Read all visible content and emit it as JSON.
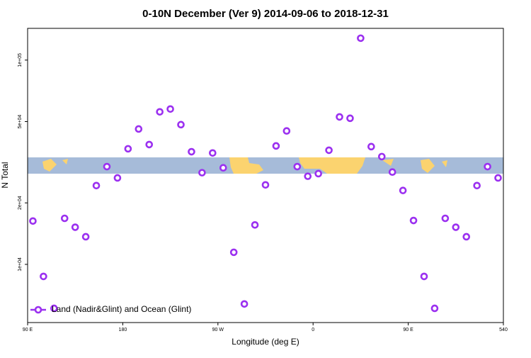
{
  "chart_data": {
    "type": "scatter",
    "title": "0-10N December (Ver 9)   2014-09-06 to 2018-12-31",
    "x_label": "Longitude (deg E)",
    "y_label": "N Total",
    "yscale": "log",
    "xlim": [
      90,
      540
    ],
    "ylim": [
      5190,
      143000
    ],
    "xticks": [
      {
        "value": 90,
        "label": "90 E"
      },
      180,
      {
        "value": 270,
        "label": "90 W"
      },
      {
        "value": 360,
        "label": "0"
      },
      {
        "value": 450,
        "label": "90 E"
      },
      540
    ],
    "yticks": [
      {
        "value": 10000,
        "label": "1e+04"
      },
      {
        "value": 20000,
        "label": "2e+04"
      },
      {
        "value": 50000,
        "label": "5e+04"
      },
      {
        "value": 100000,
        "label": "1e+05"
      }
    ],
    "legend": "bottom-left",
    "series": [
      {
        "name": "Land (Nadir&Glint) and Ocean (Glint)",
        "color": "#9b30f0",
        "x": [
          95,
          105,
          115,
          125,
          135,
          145,
          155,
          165,
          175,
          185,
          195,
          205,
          215,
          225,
          235,
          245,
          255,
          265,
          275,
          285,
          295,
          305,
          315,
          325,
          335,
          345,
          355,
          365,
          375,
          385,
          395,
          405,
          415,
          425,
          435,
          445,
          455,
          465,
          475,
          485,
          495,
          505,
          515,
          525,
          535
        ],
        "values": [
          16300,
          8730,
          6090,
          16800,
          15200,
          13650,
          24300,
          30100,
          26500,
          36800,
          46000,
          38600,
          55800,
          57600,
          48300,
          35600,
          28100,
          35100,
          29700,
          11460,
          6400,
          15600,
          24500,
          38000,
          45000,
          30100,
          27000,
          27800,
          36200,
          52700,
          51900,
          128000,
          37700,
          33700,
          28300,
          23000,
          16400,
          8730,
          6090,
          16800,
          15200,
          13650,
          24300,
          30100,
          26500
        ]
      }
    ]
  }
}
